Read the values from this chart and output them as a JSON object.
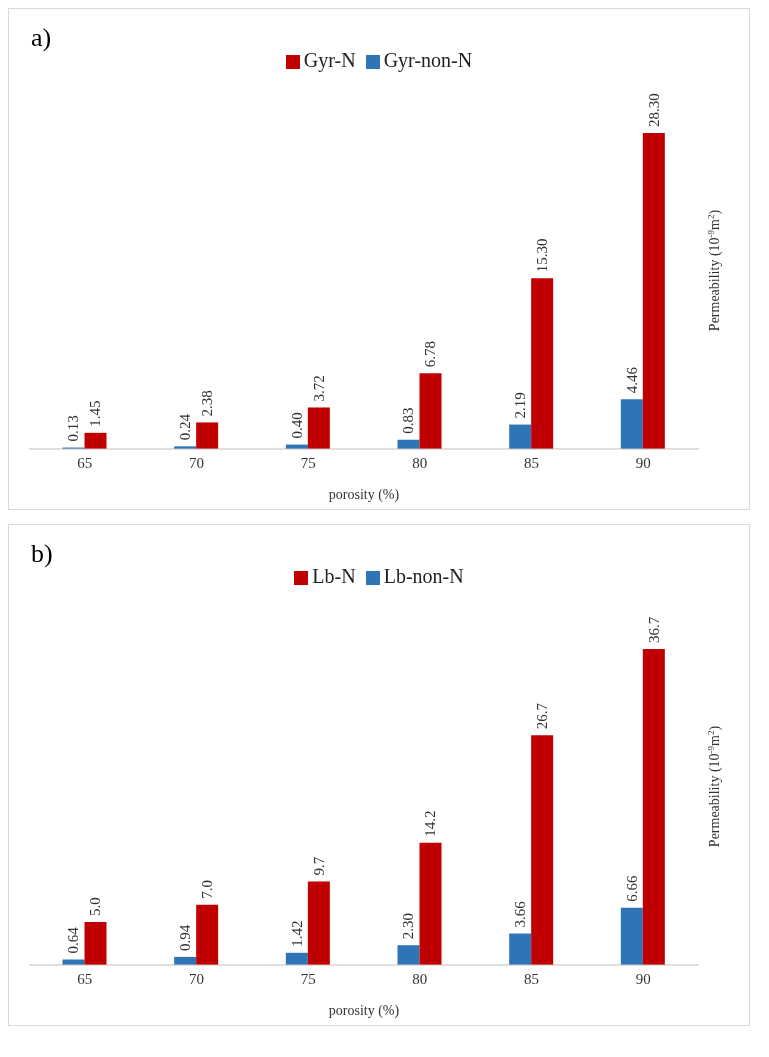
{
  "chart_data": [
    {
      "type": "bar",
      "title": "a)",
      "xlabel": "porosity (%)",
      "ylabel": "Permeability (10$^{-9}$m$^{2}$)",
      "categories": [
        "65",
        "70",
        "75",
        "80",
        "85",
        "90"
      ],
      "legend": "top",
      "data_labels": true,
      "grid": false,
      "series": [
        {
          "name": "Gyr-non-N",
          "color": "#2e75b6",
          "values": [
            0.13,
            0.24,
            0.4,
            0.83,
            2.19,
            4.46
          ],
          "value_labels": [
            "0.13",
            "0.24",
            "0.40",
            "0.83",
            "2.19",
            "4.46"
          ]
        },
        {
          "name": "Gyr-N",
          "color": "#c00000",
          "values": [
            1.45,
            2.38,
            3.72,
            6.78,
            15.3,
            28.3
          ],
          "value_labels": [
            "1.45",
            "2.38",
            "3.72",
            "6.78",
            "15.30",
            "28.30"
          ]
        }
      ]
    },
    {
      "type": "bar",
      "title": "b)",
      "xlabel": "porosity (%)",
      "ylabel": "Permeability (10$^{-9}$m$^{2}$)",
      "categories": [
        "65",
        "70",
        "75",
        "80",
        "85",
        "90"
      ],
      "legend": "top",
      "data_labels": true,
      "grid": false,
      "series": [
        {
          "name": "Lb-non-N",
          "color": "#2e75b6",
          "values": [
            0.64,
            0.94,
            1.42,
            2.3,
            3.66,
            6.66
          ],
          "value_labels": [
            "0.64",
            "0.94",
            "1.42",
            "2.30",
            "3.66",
            "6.66"
          ]
        },
        {
          "name": "Lb-N",
          "color": "#c00000",
          "values": [
            5.0,
            7.0,
            9.7,
            14.2,
            26.7,
            36.7
          ],
          "value_labels": [
            "5.0",
            "7.0",
            "9.7",
            "14.2",
            "26.7",
            "36.7"
          ]
        }
      ]
    }
  ]
}
